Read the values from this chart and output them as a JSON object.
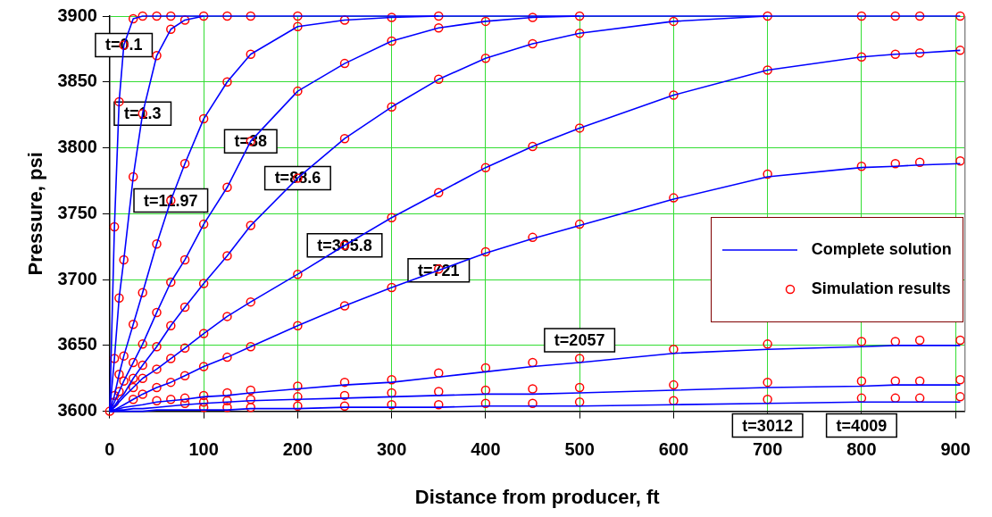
{
  "chart_data": {
    "type": "line",
    "xlabel": "Distance from producer, ft",
    "ylabel": "Pressure, psi",
    "x": [
      0,
      5,
      10,
      15,
      25,
      35,
      50,
      65,
      80,
      100,
      125,
      150,
      200,
      250,
      300,
      350,
      400,
      450,
      500,
      600,
      700,
      800,
      836,
      862,
      905
    ],
    "xlim": [
      0,
      910
    ],
    "xticks": [
      0,
      100,
      200,
      300,
      400,
      500,
      600,
      700,
      800,
      900
    ],
    "ylim": [
      3600,
      3900
    ],
    "yticks": [
      3600,
      3650,
      3700,
      3750,
      3800,
      3850,
      3900
    ],
    "grid": true,
    "legend": "bottom right",
    "series": [
      {
        "name": "Complete solution",
        "color": "#0000ff",
        "values": [
          3600,
          3740,
          3835,
          3878,
          3898,
          3900,
          3900,
          3900,
          3900,
          3900,
          null,
          null,
          null,
          null,
          null,
          null,
          null,
          null,
          null,
          null,
          null,
          null,
          null,
          null,
          null
        ]
      },
      {
        "color": "#0000ff",
        "values": [
          3600,
          3640,
          3686,
          3715,
          3778,
          3826,
          3870,
          3890,
          3897,
          3900,
          3900,
          3900,
          3900,
          3900,
          3900,
          3900,
          null,
          null,
          null,
          null,
          null,
          null,
          null,
          null,
          null
        ]
      },
      {
        "color": "#0000ff",
        "values": [
          3600,
          3612,
          3628,
          3642,
          3666,
          3690,
          3727,
          3760,
          3788,
          3822,
          3850,
          3871,
          3892,
          3897,
          3899,
          3900,
          3900,
          3900,
          3900,
          null,
          null,
          null,
          null,
          null,
          null
        ]
      },
      {
        "color": "#0000ff",
        "values": [
          3600,
          3607,
          3615,
          3623,
          3637,
          3651,
          3675,
          3698,
          3715,
          3742,
          3770,
          3805,
          3843,
          3864,
          3881,
          3891,
          3896,
          3899,
          3900,
          3900,
          3900,
          null,
          null,
          null,
          null
        ]
      },
      {
        "color": "#0000ff",
        "values": [
          3600,
          3604,
          3609,
          3613,
          3625,
          3635,
          3649,
          3665,
          3679,
          3697,
          3718,
          3741,
          3777,
          3807,
          3831,
          3852,
          3868,
          3879,
          3887,
          3896,
          3900,
          3900,
          3900,
          3900,
          3900
        ]
      },
      {
        "color": "#0000ff",
        "values": [
          3600,
          3603,
          3607,
          3611,
          3618,
          3625,
          3632,
          3640,
          3648,
          3659,
          3672,
          3683,
          3704,
          3726,
          3747,
          3766,
          3785,
          3801,
          3815,
          3840,
          3859,
          3869,
          3871,
          3872,
          3874
        ]
      },
      {
        "color": "#0000ff",
        "values": [
          3600,
          3601,
          3603,
          3605,
          3609,
          3613,
          3618,
          3622,
          3627,
          3634,
          3641,
          3649,
          3665,
          3680,
          3694,
          3707,
          3720,
          3731,
          3741,
          3761,
          3778,
          3785,
          3786,
          3787,
          3788
        ]
      },
      {
        "color": "#0000ff",
        "values": [
          3600,
          3601,
          3602,
          3603,
          3604,
          3605,
          3607,
          3608,
          3609,
          3611,
          3612,
          3614,
          3617,
          3620,
          3622,
          3626,
          3630,
          3634,
          3637,
          3644,
          3647,
          3649,
          3650,
          3650,
          3650
        ]
      },
      {
        "color": "#0000ff",
        "values": [
          3600,
          3600,
          3601,
          3601,
          3602,
          3602,
          3603,
          3604,
          3605,
          3606,
          3607,
          3608,
          3609,
          3610,
          3611,
          3612,
          3613,
          3613,
          3614,
          3616,
          3618,
          3619,
          3620,
          3620,
          3620
        ]
      },
      {
        "color": "#0000ff",
        "values": [
          3600,
          3600,
          3600,
          3600,
          3600,
          3600,
          3601,
          3601,
          3601,
          3601,
          3601,
          3602,
          3602,
          3603,
          3603,
          3603,
          3604,
          3604,
          3604,
          3605,
          3606,
          3607,
          3607,
          3607,
          3607
        ]
      },
      {
        "type": "scatter",
        "name": "Simulation results",
        "color": "#ff0000",
        "marker": "circle",
        "values": [
          3600,
          3740,
          3835,
          3878,
          3898,
          3900,
          3900,
          3900,
          null,
          null,
          null,
          null,
          null,
          null,
          null,
          null,
          null,
          null,
          null,
          null,
          null,
          null,
          null,
          null,
          null
        ]
      },
      {
        "type": "scatter",
        "color": "#ff0000",
        "marker": "circle",
        "values": [
          null,
          3640,
          3686,
          3715,
          3778,
          3826,
          3870,
          3890,
          3897,
          3900,
          3900,
          3900,
          3900,
          null,
          null,
          null,
          null,
          null,
          null,
          null,
          null,
          null,
          null,
          null,
          null
        ]
      },
      {
        "type": "scatter",
        "color": "#ff0000",
        "marker": "circle",
        "values": [
          null,
          3612,
          3628,
          3642,
          3666,
          3690,
          3727,
          3760,
          3788,
          3822,
          3850,
          3871,
          3892,
          3897,
          3899,
          3900,
          null,
          null,
          null,
          null,
          null,
          null,
          null,
          null,
          null
        ]
      },
      {
        "type": "scatter",
        "color": "#ff0000",
        "marker": "circle",
        "values": [
          null,
          3607,
          3615,
          3623,
          3637,
          3651,
          3675,
          3698,
          3715,
          3742,
          3770,
          3805,
          3843,
          3864,
          3881,
          3891,
          3896,
          3899,
          3900,
          null,
          null,
          null,
          null,
          null,
          null
        ]
      },
      {
        "type": "scatter",
        "color": "#ff0000",
        "marker": "circle",
        "values": [
          null,
          null,
          null,
          null,
          3625,
          3635,
          3649,
          3665,
          3679,
          3697,
          3718,
          3741,
          3777,
          3807,
          3831,
          3852,
          3868,
          3879,
          3887,
          3896,
          3900,
          3900,
          3900,
          3900,
          3900
        ]
      },
      {
        "type": "scatter",
        "color": "#ff0000",
        "marker": "circle",
        "values": [
          null,
          null,
          null,
          null,
          3618,
          3625,
          3632,
          3640,
          3648,
          3659,
          3672,
          3683,
          3704,
          3726,
          3747,
          3766,
          3785,
          3801,
          3815,
          3840,
          3859,
          3869,
          3871,
          3872,
          3874
        ]
      },
      {
        "type": "scatter",
        "color": "#ff0000",
        "marker": "circle",
        "values": [
          null,
          null,
          null,
          null,
          3609,
          3613,
          3618,
          3622,
          3627,
          3634,
          3641,
          3649,
          3665,
          3680,
          3694,
          3708,
          3721,
          3732,
          3742,
          3762,
          3780,
          3786,
          3788,
          3789,
          3790
        ]
      },
      {
        "type": "scatter",
        "color": "#ff0000",
        "marker": "circle",
        "values": [
          null,
          null,
          null,
          null,
          null,
          null,
          3608,
          3609,
          3610,
          3612,
          3614,
          3616,
          3619,
          3622,
          3624,
          3629,
          3633,
          3637,
          3640,
          3647,
          3651,
          3653,
          3653,
          3654,
          3654
        ]
      },
      {
        "type": "scatter",
        "color": "#ff0000",
        "marker": "circle",
        "values": [
          null,
          null,
          null,
          null,
          null,
          null,
          null,
          null,
          3606,
          3607,
          3608,
          3609,
          3611,
          3612,
          3614,
          3615,
          3616,
          3617,
          3618,
          3620,
          3622,
          3623,
          3623,
          3623,
          3624
        ]
      },
      {
        "type": "scatter",
        "color": "#ff0000",
        "marker": "circle",
        "values": [
          null,
          null,
          null,
          null,
          null,
          null,
          null,
          null,
          null,
          3603,
          3603,
          3603,
          3604,
          3604,
          3605,
          3605,
          3606,
          3606,
          3607,
          3608,
          3609,
          3610,
          3610,
          3610,
          3611
        ]
      }
    ],
    "annotations": [
      {
        "text": "t=0.1",
        "x": 15,
        "y": 3878
      },
      {
        "text": "t=1.3",
        "x": 35,
        "y": 3826
      },
      {
        "text": "t=11.97",
        "x": 65,
        "y": 3760
      },
      {
        "text": "t=38",
        "x": 150,
        "y": 3805
      },
      {
        "text": "t=88.6",
        "x": 200,
        "y": 3777
      },
      {
        "text": "t=305.8",
        "x": 250,
        "y": 3726
      },
      {
        "text": "t=721",
        "x": 350,
        "y": 3707
      },
      {
        "text": "t=2057",
        "x": 500,
        "y": 3637
      },
      {
        "text": "t=3012",
        "x": 700,
        "y": 3618
      },
      {
        "text": "t=4009",
        "x": 800,
        "y": 3607
      }
    ]
  }
}
